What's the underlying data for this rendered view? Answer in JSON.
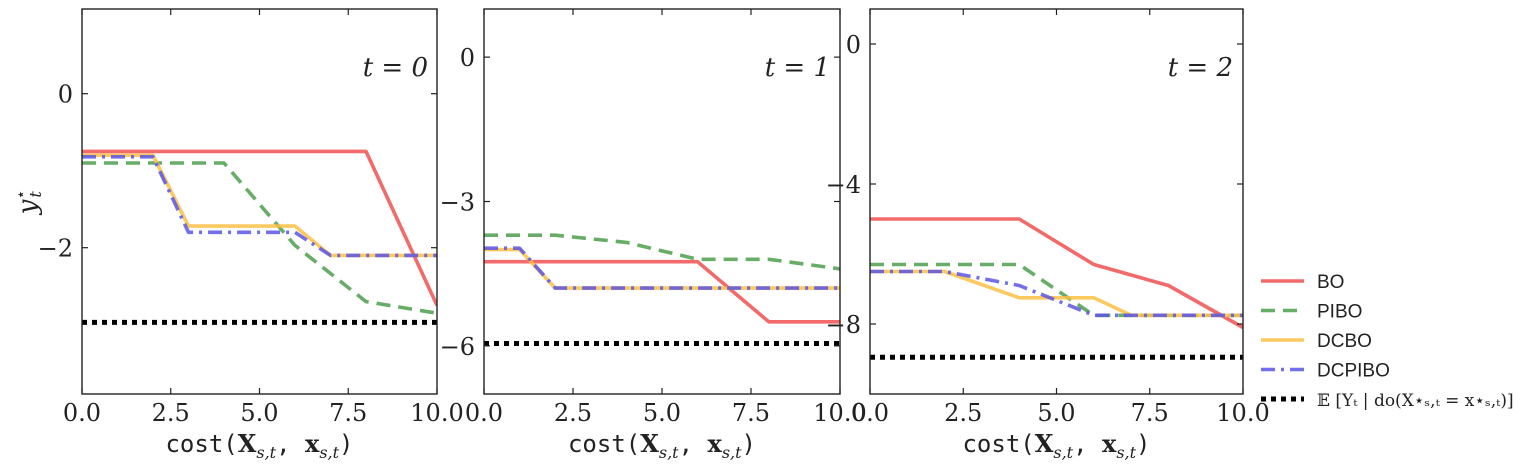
{
  "chart_data": [
    {
      "type": "line",
      "annotation": "t = 0",
      "xlabel": "cost(X_{s,t}, x_{s,t})",
      "ylabel": "y*_t",
      "xlim": [
        0,
        10
      ],
      "ylim": [
        -3.9,
        1.1
      ],
      "xticks": [
        0,
        2.5,
        5,
        7.5,
        10
      ],
      "xtick_labels": [
        "0.0",
        "2.5",
        "5.0",
        "7.5",
        "10.0"
      ],
      "yticks": [
        0,
        -2
      ],
      "ytick_labels": [
        "0",
        "−2"
      ],
      "series": [
        {
          "name": "BO",
          "x": [
            0,
            8,
            10
          ],
          "y": [
            -0.75,
            -0.75,
            -2.75
          ]
        },
        {
          "name": "PIBO",
          "x": [
            0,
            4,
            6,
            8,
            10
          ],
          "y": [
            -0.9,
            -0.9,
            -1.97,
            -2.7,
            -2.85
          ]
        },
        {
          "name": "DCBO",
          "x": [
            0,
            2,
            3,
            6,
            7,
            10
          ],
          "y": [
            -0.8,
            -0.8,
            -1.72,
            -1.72,
            -2.1,
            -2.1
          ]
        },
        {
          "name": "DCPIBO",
          "x": [
            0,
            2,
            3,
            6,
            7,
            10
          ],
          "y": [
            -0.82,
            -0.82,
            -1.8,
            -1.8,
            -2.1,
            -2.1
          ]
        },
        {
          "name": "E[Y_t | do(X*_{s,t} = x*_{s,t})]",
          "x": [
            0,
            10
          ],
          "y": [
            -2.97,
            -2.97
          ]
        }
      ]
    },
    {
      "type": "line",
      "annotation": "t = 1",
      "xlabel": "cost(X_{s,t}, x_{s,t})",
      "ylabel": "",
      "xlim": [
        0,
        10
      ],
      "ylim": [
        -7.0,
        1.0
      ],
      "xticks": [
        0,
        2.5,
        5,
        7.5,
        10
      ],
      "xtick_labels": [
        "0.0",
        "2.5",
        "5.0",
        "7.5",
        "10.0"
      ],
      "yticks": [
        0,
        -3,
        -6
      ],
      "ytick_labels": [
        "0",
        "−3",
        "−6"
      ],
      "series": [
        {
          "name": "BO",
          "x": [
            0,
            6,
            8,
            10
          ],
          "y": [
            -4.25,
            -4.25,
            -5.5,
            -5.5
          ]
        },
        {
          "name": "PIBO",
          "x": [
            0,
            2,
            4,
            6,
            8,
            10
          ],
          "y": [
            -3.7,
            -3.7,
            -3.85,
            -4.2,
            -4.2,
            -4.4
          ]
        },
        {
          "name": "DCBO",
          "x": [
            0,
            1,
            2,
            10
          ],
          "y": [
            -4.0,
            -4.0,
            -4.8,
            -4.8
          ]
        },
        {
          "name": "DCPIBO",
          "x": [
            0,
            1,
            2,
            10
          ],
          "y": [
            -3.97,
            -3.97,
            -4.8,
            -4.8
          ]
        },
        {
          "name": "E[Y_t | do(X*_{s,t} = x*_{s,t})]",
          "x": [
            0,
            10
          ],
          "y": [
            -5.95,
            -5.95
          ]
        }
      ]
    },
    {
      "type": "line",
      "annotation": "t = 2",
      "xlabel": "cost(X_{s,t}, x_{s,t})",
      "ylabel": "",
      "xlim": [
        0,
        10
      ],
      "ylim": [
        -10.0,
        1.0
      ],
      "xticks": [
        0,
        2.5,
        5,
        7.5,
        10
      ],
      "xtick_labels": [
        "0.0",
        "2.5",
        "5.0",
        "7.5",
        "10.0"
      ],
      "yticks": [
        0,
        -4,
        -8
      ],
      "ytick_labels": [
        "0",
        "−4",
        "−8"
      ],
      "series": [
        {
          "name": "BO",
          "x": [
            0,
            4,
            6,
            8,
            10
          ],
          "y": [
            -5.0,
            -5.0,
            -6.3,
            -6.9,
            -8.1
          ]
        },
        {
          "name": "PIBO",
          "x": [
            0,
            4,
            6,
            10
          ],
          "y": [
            -6.3,
            -6.3,
            -7.75,
            -7.75
          ]
        },
        {
          "name": "DCBO",
          "x": [
            0,
            2,
            4,
            6,
            7,
            10
          ],
          "y": [
            -6.5,
            -6.5,
            -7.25,
            -7.25,
            -7.75,
            -7.75
          ]
        },
        {
          "name": "DCPIBO",
          "x": [
            0,
            2,
            4,
            6,
            10
          ],
          "y": [
            -6.5,
            -6.5,
            -6.9,
            -7.75,
            -7.75
          ]
        },
        {
          "name": "E[Y_t | do(X*_{s,t} = x*_{s,t})]",
          "x": [
            0,
            10
          ],
          "y": [
            -8.95,
            -8.95
          ]
        }
      ]
    }
  ],
  "legend": {
    "placement": "right",
    "items": [
      {
        "label": "BO",
        "color": "#f05050",
        "style": "solid"
      },
      {
        "label": "PIBO",
        "color": "#4c9f4c",
        "style": "dashed"
      },
      {
        "label": "DCBO",
        "color": "#fbbf45",
        "style": "solid"
      },
      {
        "label": "DCPIBO",
        "color": "#5a55e6",
        "style": "dashdot"
      },
      {
        "label": "𝔼 [Yₜ | do(X⋆ₛ,ₜ = x⋆ₛ,ₜ)]",
        "color": "#000000",
        "style": "dotted"
      }
    ]
  },
  "styles": {
    "BO": {
      "color": "#f05050",
      "dash": ""
    },
    "PIBO": {
      "color": "#4c9f4c",
      "dash": "14,8"
    },
    "DCBO": {
      "color": "#fbbf45",
      "dash": ""
    },
    "DCPIBO": {
      "color": "#5a55e6",
      "dash": "14,6,3,6"
    },
    "E[Y_t | do(X*_{s,t} = x*_{s,t})]": {
      "color": "#000000",
      "dash": "5,5"
    }
  }
}
